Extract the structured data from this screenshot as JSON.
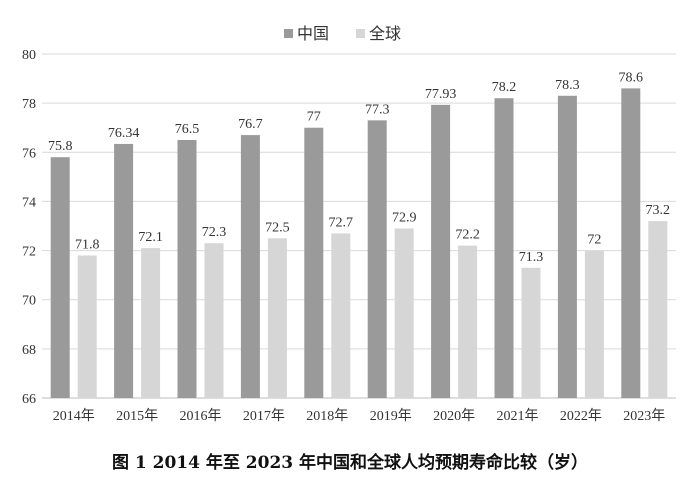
{
  "chart_data": {
    "type": "bar",
    "categories": [
      "2014年",
      "2015年",
      "2016年",
      "2017年",
      "2018年",
      "2019年",
      "2020年",
      "2021年",
      "2022年",
      "2023年"
    ],
    "series": [
      {
        "name": "中国",
        "values": [
          75.8,
          76.34,
          76.5,
          76.7,
          77,
          77.3,
          77.93,
          78.2,
          78.3,
          78.6
        ],
        "labels": [
          "75.8",
          "76.34",
          "76.5",
          "76.7",
          "77",
          "77.3",
          "77.93",
          "78.2",
          "78.3",
          "78.6"
        ],
        "color": "#9a9a9a"
      },
      {
        "name": "全球",
        "values": [
          71.8,
          72.1,
          72.3,
          72.5,
          72.7,
          72.9,
          72.2,
          71.3,
          72,
          73.2
        ],
        "labels": [
          "71.8",
          "72.1",
          "72.3",
          "72.5",
          "72.7",
          "72.9",
          "72.2",
          "71.3",
          "72",
          "73.2"
        ],
        "color": "#d6d6d6"
      }
    ],
    "ylim": [
      66,
      80
    ],
    "yticks": [
      66,
      68,
      70,
      72,
      74,
      76,
      78,
      80
    ],
    "grid": true,
    "legend_position": "top-center"
  },
  "caption": "图 1    2014 年至 2023 年中国和全球人均预期寿命比较（岁）"
}
